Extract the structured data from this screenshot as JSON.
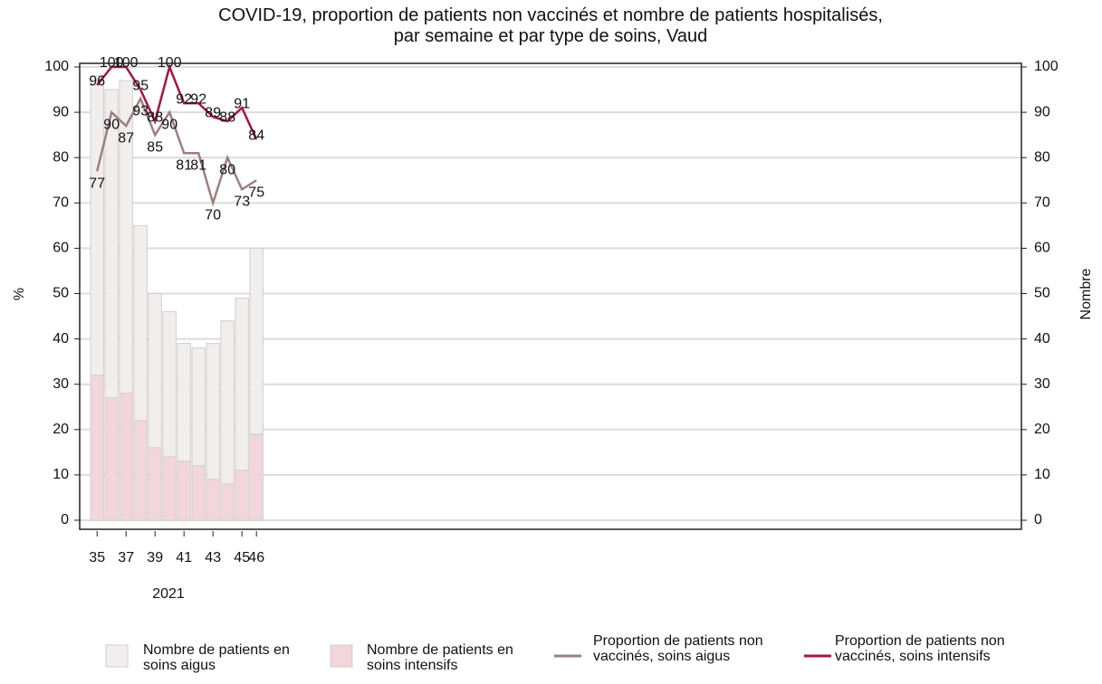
{
  "chart_data": {
    "type": "bar",
    "title": "COVID-19, proportion de patients non vaccinés et nombre de patients hospitalisés, par semaine et par type de soins, Vaud",
    "ylabel": "%",
    "y2label": "Nombre",
    "xlabel": "2021",
    "x": [
      35,
      36,
      37,
      38,
      39,
      40,
      41,
      42,
      43,
      44,
      45,
      46
    ],
    "xlim": [
      33.8,
      98.8
    ],
    "xticks": [
      35,
      37,
      39,
      41,
      43,
      45,
      46
    ],
    "ylim": [
      0,
      100
    ],
    "yticks": [
      0,
      10,
      20,
      30,
      40,
      50,
      60,
      70,
      80,
      90,
      100
    ],
    "y2lim": [
      0,
      100
    ],
    "y2ticks": [
      0,
      10,
      20,
      30,
      40,
      50,
      60,
      70,
      80,
      90,
      100
    ],
    "grid": true,
    "series": [
      {
        "name": "Nombre de patients en soins aigus",
        "type": "bar",
        "axis": "y2",
        "color": "#f3eeee",
        "values": [
          66,
          68,
          69,
          43,
          34,
          32,
          26,
          26,
          30,
          36,
          38,
          41
        ]
      },
      {
        "name": "Nombre de patients en soins intensifs",
        "type": "bar",
        "axis": "y2",
        "color": "#f3d6db",
        "values": [
          32,
          27,
          28,
          22,
          16,
          14,
          13,
          12,
          9,
          8,
          11,
          19
        ]
      },
      {
        "name": "Proportion de patients non vaccinés, soins aigus",
        "type": "line",
        "axis": "y",
        "color": "#9c8080",
        "values": [
          77,
          90,
          87,
          93,
          85,
          90,
          81,
          81,
          70,
          80,
          73,
          75
        ]
      },
      {
        "name": "Proportion de patients non vaccinés, soins intensifs",
        "type": "line",
        "axis": "y",
        "color": "#a3173c",
        "values": [
          96,
          100,
          100,
          95,
          88,
          100,
          92,
          92,
          89,
          88,
          91,
          84
        ]
      }
    ]
  }
}
